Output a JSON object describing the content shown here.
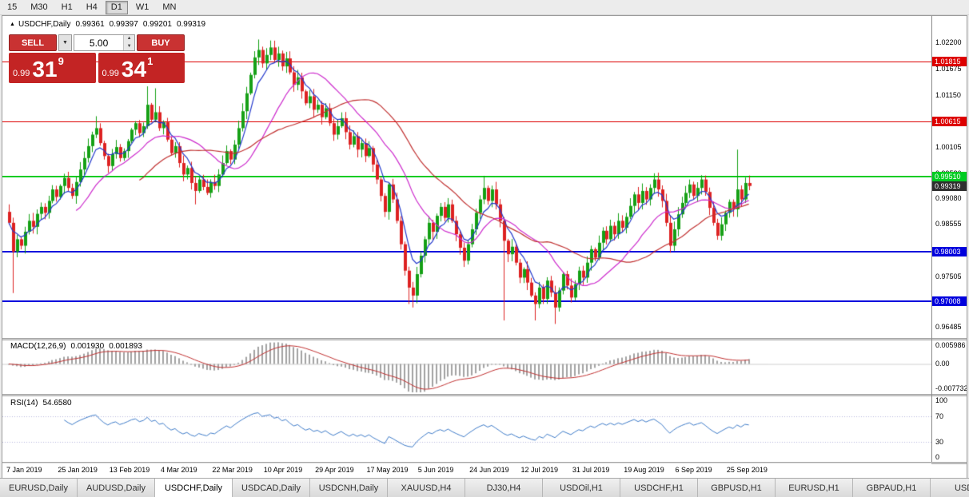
{
  "toolbar": {
    "timeframes": [
      {
        "label": "15",
        "active": false
      },
      {
        "label": "M30",
        "active": false
      },
      {
        "label": "H1",
        "active": false
      },
      {
        "label": "H4",
        "active": false
      },
      {
        "label": "D1",
        "active": true
      },
      {
        "label": "W1",
        "active": false
      },
      {
        "label": "MN",
        "active": false
      }
    ]
  },
  "icons": {
    "collapse": "▲",
    "dropdown": "▼",
    "spin_up": "▲",
    "spin_down": "▼"
  },
  "chart": {
    "title": "USDCHF,Daily",
    "open": "0.99361",
    "high": "0.99397",
    "low": "0.99201",
    "close": "0.99319"
  },
  "trade_panel": {
    "sell_label": "SELL",
    "buy_label": "BUY",
    "volume": "5.00",
    "sell_price_prefix": "0.99",
    "sell_price_big": "31",
    "sell_price_sup": "9",
    "buy_price_prefix": "0.99",
    "buy_price_big": "34",
    "buy_price_sup": "1"
  },
  "price_axis": {
    "max": 1.027,
    "min": 0.963,
    "ticks": [
      "1.02200",
      "1.01675",
      "1.01150",
      "1.00630",
      "1.00105",
      "0.99580",
      "0.99080",
      "0.98555",
      "0.98030",
      "0.97505",
      "0.96980",
      "0.96485"
    ]
  },
  "levels": [
    {
      "label": "1.01815",
      "price": 1.01815,
      "color": "#dd0000",
      "width": 1
    },
    {
      "label": "1.00615",
      "price": 1.00615,
      "color": "#dd0000",
      "width": 1
    },
    {
      "label": "0.99510",
      "price": 0.9951,
      "color": "#00cc22",
      "width": 2
    },
    {
      "label": "0.98003",
      "price": 0.98003,
      "color": "#0000dd",
      "width": 2
    },
    {
      "label": "0.97008",
      "price": 0.97008,
      "color": "#0000dd",
      "width": 2
    }
  ],
  "current_price": {
    "label": "0.99319",
    "price": 0.99319,
    "color": "#2f2f2f"
  },
  "macd": {
    "label": "MACD(12,26,9)",
    "value_main": "0.001930",
    "value_signal": "0.001893",
    "max": 0.005986,
    "min": -0.007732,
    "axis_top": "0.005986",
    "axis_zero": "0.00",
    "axis_bottom": "-0.007732",
    "bar_color": "#a2a2a2",
    "signal_color": "#c03030",
    "params": [
      12,
      26,
      9
    ]
  },
  "rsi": {
    "label": "RSI(14)",
    "value": "54.6580",
    "period": 14,
    "line_color": "#3e7bc8",
    "levels": [
      70,
      30
    ],
    "axis": [
      "100",
      "70",
      "30",
      "0"
    ],
    "max": 100,
    "min": 0
  },
  "chart_data": {
    "type": "candlestick",
    "title": "USDCHF Daily",
    "x_labels": [
      "7 Jan 2019",
      "25 Jan 2019",
      "13 Feb 2019",
      "4 Mar 2019",
      "22 Mar 2019",
      "10 Apr 2019",
      "29 Apr 2019",
      "17 May 2019",
      "5 Jun 2019",
      "24 Jun 2019",
      "12 Jul 2019",
      "31 Jul 2019",
      "19 Aug 2019",
      "6 Sep 2019",
      "25 Sep 2019"
    ],
    "x_label_indices": [
      0,
      13,
      26,
      39,
      52,
      65,
      78,
      91,
      104,
      117,
      130,
      143,
      156,
      169,
      182
    ],
    "first_open": 0.988,
    "closes": [
      0.9858,
      0.98,
      0.9825,
      0.9812,
      0.984,
      0.9862,
      0.985,
      0.9876,
      0.989,
      0.9878,
      0.9902,
      0.9925,
      0.991,
      0.9932,
      0.9948,
      0.9928,
      0.9912,
      0.994,
      0.9965,
      0.9988,
      1.0012,
      1.0035,
      1.0048,
      1.0018,
      0.9992,
      0.9972,
      0.9996,
      1.001,
      0.9988,
      1.0002,
      1.0022,
      1.0045,
      1.0058,
      1.0038,
      1.0052,
      1.0095,
      1.0065,
      1.008,
      1.0048,
      1.006,
      1.0025,
      0.9998,
      1.0012,
      0.9978,
      0.9955,
      0.9968,
      0.9938,
      0.9922,
      0.9945,
      0.993,
      0.9918,
      0.994,
      0.9932,
      0.9955,
      0.9978,
      1.0002,
      0.9985,
      1.0015,
      1.0048,
      1.0082,
      1.0118,
      1.0155,
      1.019,
      1.0205,
      1.0178,
      1.0195,
      1.021,
      1.0185,
      1.0198,
      1.0172,
      1.0188,
      1.016,
      1.0135,
      1.015,
      1.0122,
      1.0098,
      1.0112,
      1.0085,
      1.0095,
      1.007,
      1.0088,
      1.0058,
      1.0035,
      1.0052,
      1.0068,
      1.004,
      1.0015,
      1.0032,
      1.0005,
      1.0018,
      0.9992,
      1.0008,
      0.9975,
      0.9945,
      0.9912,
      0.988,
      0.9935,
      0.9905,
      0.9862,
      0.9815,
      0.9762,
      0.9728,
      0.9712,
      0.9755,
      0.9792,
      0.9825,
      0.9858,
      0.984,
      0.9872,
      0.989,
      0.9868,
      0.9895,
      0.9862,
      0.9835,
      0.9808,
      0.9782,
      0.9815,
      0.9845,
      0.9878,
      0.9905,
      0.9928,
      0.9902,
      0.9925,
      0.9895,
      0.9862,
      0.9822,
      0.9795,
      0.981,
      0.9778,
      0.9748,
      0.9765,
      0.9738,
      0.9712,
      0.9695,
      0.9728,
      0.9705,
      0.9742,
      0.9718,
      0.9688,
      0.9722,
      0.9755,
      0.9732,
      0.9708,
      0.9735,
      0.9762,
      0.9748,
      0.9778,
      0.9805,
      0.9788,
      0.9818,
      0.9842,
      0.9825,
      0.9852,
      0.9835,
      0.9862,
      0.9848,
      0.987,
      0.9892,
      0.9915,
      0.9898,
      0.9922,
      0.9905,
      0.9928,
      0.9945,
      0.9925,
      0.9902,
      0.9858,
      0.9812,
      0.9845,
      0.9875,
      0.9898,
      0.9918,
      0.9935,
      0.9912,
      0.9928,
      0.9945,
      0.992,
      0.9888,
      0.9858,
      0.9832,
      0.9855,
      0.9878,
      0.99,
      0.9885,
      0.9925,
      0.9905,
      0.9938,
      0.9932
    ],
    "special_highs": {
      "22": 1.0072,
      "35": 1.0132,
      "37": 1.0128,
      "63": 1.0226,
      "66": 1.0224,
      "120": 0.9952,
      "184": 1.0005
    },
    "special_lows": {
      "1": 0.9717,
      "47": 0.9895,
      "101": 0.9695,
      "102": 0.9688,
      "125": 0.9662,
      "133": 0.9662,
      "138": 0.9655,
      "167": 0.9798
    },
    "wick": 0.0016,
    "up_color": "#15a015",
    "down_color": "#dd2222",
    "moving_averages": [
      {
        "type": "ema",
        "period": 6,
        "color": "#2238cc"
      },
      {
        "type": "sma",
        "period": 18,
        "color": "#cc2acc"
      },
      {
        "type": "sma",
        "period": 34,
        "color": "#c03030"
      }
    ]
  },
  "tabs": [
    {
      "label": "EURUSD,Daily",
      "active": false
    },
    {
      "label": "AUDUSD,Daily",
      "active": false
    },
    {
      "label": "USDCHF,Daily",
      "active": true
    },
    {
      "label": "USDCAD,Daily",
      "active": false
    },
    {
      "label": "USDCNH,Daily",
      "active": false
    },
    {
      "label": "XAUUSD,H4",
      "active": false
    },
    {
      "label": "DJ30,H4",
      "active": false
    },
    {
      "label": "USDOil,H1",
      "active": false
    },
    {
      "label": "USDCHF,H1",
      "active": false
    },
    {
      "label": "GBPUSD,H1",
      "active": false
    },
    {
      "label": "EURUSD,H1",
      "active": false
    },
    {
      "label": "GBPAUD,H1",
      "active": false
    },
    {
      "label": "USDJP",
      "active": false
    }
  ]
}
